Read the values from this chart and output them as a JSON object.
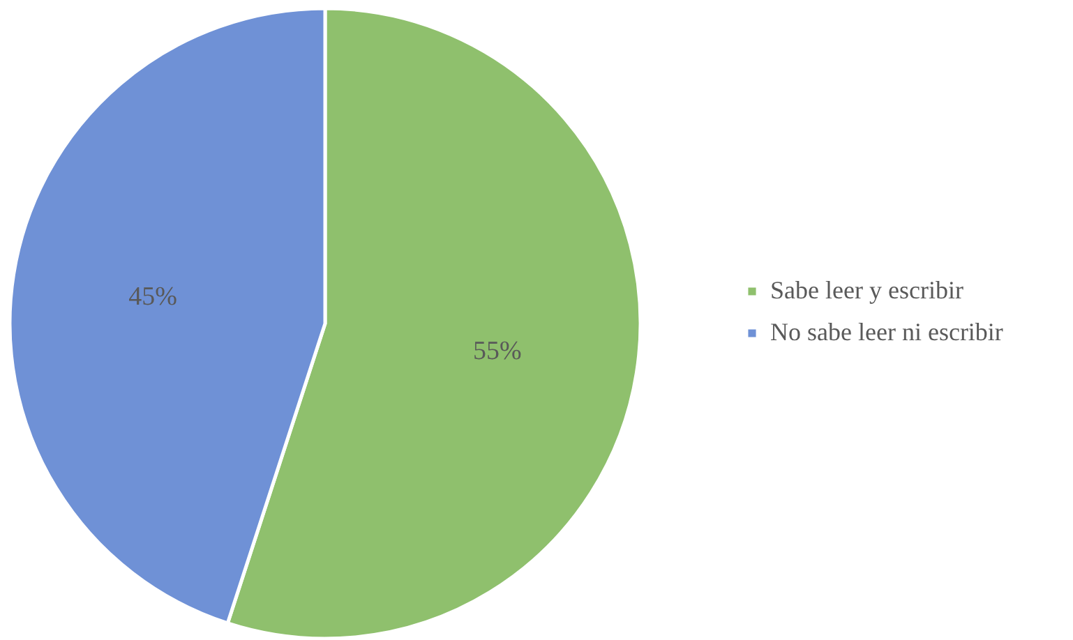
{
  "chart_data": {
    "type": "pie",
    "categories": [
      "Sabe leer y escribir",
      "No sabe leer ni escribir"
    ],
    "values": [
      55,
      45
    ],
    "colors": [
      "#8fc06d",
      "#6f91d6"
    ],
    "value_labels": [
      "55%",
      "45%"
    ],
    "legend": "right"
  }
}
